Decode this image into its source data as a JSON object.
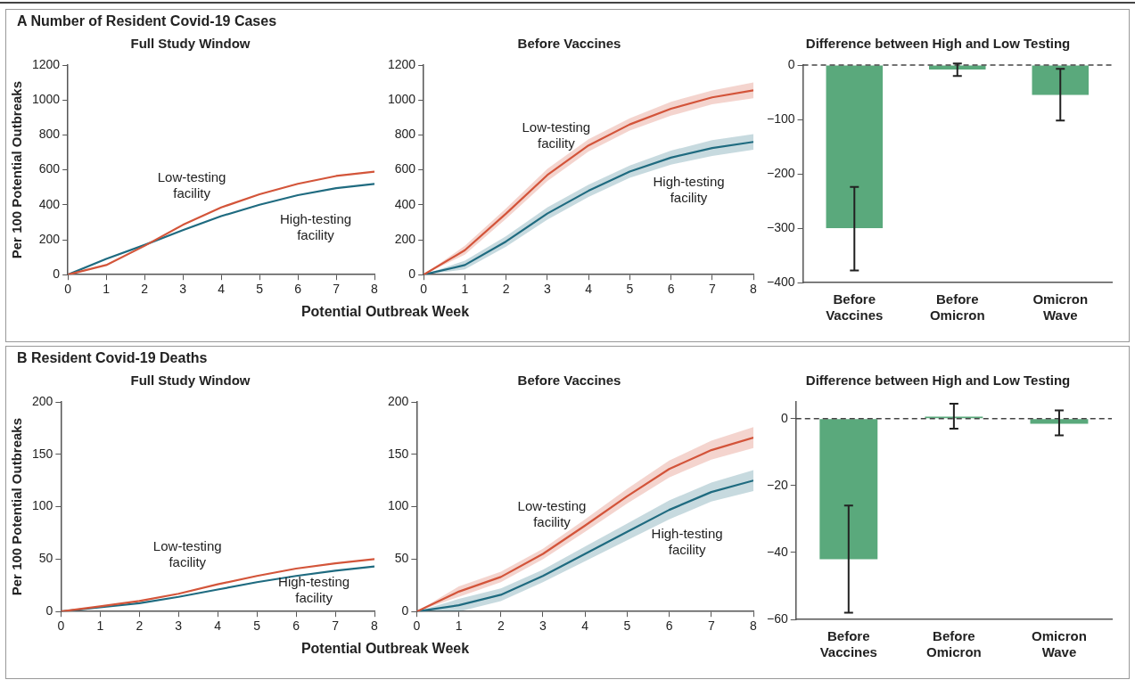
{
  "chart_data": [
    {
      "type": "line",
      "title": "Full Study Window",
      "annotations": [
        "A  Number of Resident Covid-19 Cases"
      ],
      "xlabel": "Potential Outbreak Week",
      "ylabel": "Per 100 Potential Outbreaks",
      "x": [
        0,
        1,
        2,
        3,
        4,
        5,
        6,
        7,
        8
      ],
      "xlim": [
        0,
        8
      ],
      "xticks": [
        0,
        1,
        2,
        3,
        4,
        5,
        6,
        7,
        8
      ],
      "ylim": [
        0,
        1200
      ],
      "yticks": [
        0,
        200,
        400,
        600,
        800,
        1000,
        1200
      ],
      "marker": "none",
      "line_style": "solid",
      "series": [
        {
          "name": "Low-testing facility",
          "color": "#d3553a",
          "values": [
            0,
            55,
            165,
            285,
            385,
            460,
            520,
            565,
            590
          ]
        },
        {
          "name": "High-testing facility",
          "color": "#1f6b80",
          "values": [
            0,
            90,
            170,
            255,
            335,
            400,
            455,
            495,
            520
          ]
        }
      ]
    },
    {
      "type": "line",
      "title": "Before Vaccines",
      "x": [
        0,
        1,
        2,
        3,
        4,
        5,
        6,
        7,
        8
      ],
      "xlim": [
        0,
        8
      ],
      "xticks": [
        0,
        1,
        2,
        3,
        4,
        5,
        6,
        7,
        8
      ],
      "ylim": [
        0,
        1200
      ],
      "yticks": [
        0,
        200,
        400,
        600,
        800,
        1000,
        1200
      ],
      "marker": "none",
      "line_style": "solid",
      "series": [
        {
          "name": "Low-testing facility",
          "color": "#d3553a",
          "values": [
            0,
            140,
            350,
            570,
            740,
            860,
            950,
            1015,
            1055
          ],
          "lower": [
            0,
            115,
            320,
            535,
            705,
            825,
            910,
            975,
            1010
          ],
          "upper": [
            0,
            165,
            380,
            605,
            775,
            895,
            990,
            1055,
            1100
          ]
        },
        {
          "name": "High-testing facility",
          "color": "#1f6b80",
          "values": [
            0,
            55,
            190,
            350,
            480,
            590,
            670,
            725,
            760
          ],
          "lower": [
            0,
            30,
            160,
            315,
            445,
            555,
            630,
            680,
            715
          ],
          "upper": [
            0,
            80,
            220,
            385,
            515,
            625,
            710,
            770,
            805
          ]
        }
      ]
    },
    {
      "type": "bar",
      "title": "Difference between High and Low Testing",
      "categories": [
        "Before Vaccines",
        "Before Omicron",
        "Omicron Wave"
      ],
      "values": [
        -300,
        -8,
        -55
      ],
      "errors": [
        [
          -378,
          -224
        ],
        [
          -20,
          3
        ],
        [
          -102,
          -7
        ]
      ],
      "color": "#5aa97c",
      "ylim": [
        -400,
        0
      ],
      "yticks": [
        {
          "value": -400,
          "label": "−400"
        },
        {
          "value": -300,
          "label": "−300"
        },
        {
          "value": -200,
          "label": "−200"
        },
        {
          "value": -100,
          "label": "−100"
        },
        0
      ],
      "ref_lines": [
        {
          "axis": "y",
          "value": 0,
          "line_style": "dashed",
          "color": "#444444"
        }
      ]
    },
    {
      "type": "line",
      "title": "Full Study Window",
      "annotations": [
        "B  Resident Covid-19 Deaths"
      ],
      "xlabel": "Potential Outbreak Week",
      "ylabel": "Per 100 Potential Outbreaks",
      "x": [
        0,
        1,
        2,
        3,
        4,
        5,
        6,
        7,
        8
      ],
      "xlim": [
        0,
        8
      ],
      "xticks": [
        0,
        1,
        2,
        3,
        4,
        5,
        6,
        7,
        8
      ],
      "ylim": [
        0,
        200
      ],
      "yticks": [
        0,
        50,
        100,
        150,
        200
      ],
      "marker": "none",
      "line_style": "solid",
      "series": [
        {
          "name": "Low-testing facility",
          "color": "#d3553a",
          "values": [
            0,
            5,
            10,
            17,
            26,
            34,
            41,
            46,
            50
          ]
        },
        {
          "name": "High-testing facility",
          "color": "#1f6b80",
          "values": [
            0,
            4,
            8,
            14,
            21,
            28,
            34,
            39,
            43
          ]
        }
      ]
    },
    {
      "type": "line",
      "title": "Before Vaccines",
      "x": [
        0,
        1,
        2,
        3,
        4,
        5,
        6,
        7,
        8
      ],
      "xlim": [
        0,
        8
      ],
      "xticks": [
        0,
        1,
        2,
        3,
        4,
        5,
        6,
        7,
        8
      ],
      "ylim": [
        0,
        200
      ],
      "yticks": [
        0,
        50,
        100,
        150,
        200
      ],
      "marker": "none",
      "line_style": "solid",
      "series": [
        {
          "name": "Low-testing facility",
          "color": "#d3553a",
          "values": [
            0,
            19,
            33,
            55,
            82,
            110,
            136,
            154,
            166
          ],
          "lower": [
            0,
            14,
            28,
            50,
            76,
            103,
            128,
            145,
            156
          ],
          "upper": [
            0,
            24,
            38,
            60,
            88,
            117,
            144,
            163,
            176
          ]
        },
        {
          "name": "High-testing facility",
          "color": "#1f6b80",
          "values": [
            0,
            6,
            16,
            34,
            55,
            76,
            97,
            114,
            125
          ],
          "lower": [
            0,
            0,
            10,
            28,
            48,
            68,
            88,
            105,
            115
          ],
          "upper": [
            0,
            12,
            22,
            40,
            62,
            84,
            106,
            123,
            135
          ]
        }
      ]
    },
    {
      "type": "bar",
      "title": "Difference between High and Low Testing",
      "categories": [
        "Before Vaccines",
        "Before Omicron",
        "Omicron Wave"
      ],
      "values": [
        -42,
        0.6,
        -1.5
      ],
      "errors": [
        [
          -58,
          -26
        ],
        [
          -3,
          4.5
        ],
        [
          -5,
          2.5
        ]
      ],
      "color": "#5aa97c",
      "ylim": [
        -60,
        5
      ],
      "yticks": [
        {
          "value": -60,
          "label": "−60"
        },
        {
          "value": -40,
          "label": "−40"
        },
        {
          "value": -20,
          "label": "−20"
        },
        0
      ],
      "ref_lines": [
        {
          "axis": "y",
          "value": 0,
          "line_style": "dashed",
          "color": "#444444"
        }
      ]
    }
  ]
}
